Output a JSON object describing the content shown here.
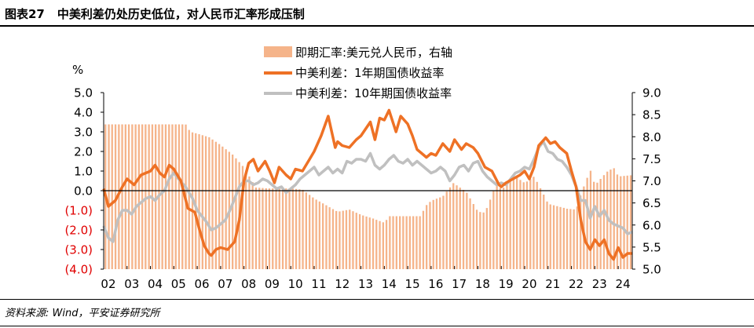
{
  "header": {
    "figure_number": "图表27",
    "title": "中美利差仍处历史低位，对人民币汇率形成压制"
  },
  "footer": {
    "source": "资料来源: Wind，平安证券研究所"
  },
  "colors": {
    "bar": "#f5b48a",
    "line1": "#ee7125",
    "line2": "#c0c0c0",
    "negative_tick": "#e00000",
    "text": "#000000"
  },
  "chart_data": {
    "type": "line",
    "left_unit": "%",
    "left_ylim": [
      -4.0,
      5.0
    ],
    "left_ticks": [
      "5.0",
      "4.0",
      "3.0",
      "2.0",
      "1.0",
      "0.0",
      "(1.0)",
      "(2.0)",
      "(3.0)",
      "(4.0)"
    ],
    "right_ylim": [
      5.0,
      9.0
    ],
    "right_ticks": [
      "9.0",
      "8.5",
      "8.0",
      "7.5",
      "7.0",
      "6.5",
      "6.0",
      "5.5",
      "5.0"
    ],
    "x_tick_labels": [
      "02",
      "03",
      "04",
      "05",
      "06",
      "07",
      "08",
      "09",
      "10",
      "11",
      "12",
      "13",
      "14",
      "15",
      "16",
      "17",
      "18",
      "19",
      "20",
      "21",
      "22",
      "23",
      "24"
    ],
    "x_range": [
      2002.0,
      2024.6
    ],
    "series": [
      {
        "name": "即期汇率:美元兑人民币，右轴",
        "type": "bar",
        "axis": "right",
        "points": [
          [
            2002.0,
            8.28
          ],
          [
            2003.0,
            8.28
          ],
          [
            2004.0,
            8.28
          ],
          [
            2005.0,
            8.28
          ],
          [
            2005.5,
            8.28
          ],
          [
            2005.7,
            8.11
          ],
          [
            2006.0,
            8.07
          ],
          [
            2006.5,
            7.99
          ],
          [
            2007.0,
            7.81
          ],
          [
            2007.5,
            7.6
          ],
          [
            2008.0,
            7.3
          ],
          [
            2008.5,
            6.85
          ],
          [
            2009.0,
            6.83
          ],
          [
            2010.0,
            6.83
          ],
          [
            2010.5,
            6.8
          ],
          [
            2011.0,
            6.6
          ],
          [
            2011.5,
            6.45
          ],
          [
            2012.0,
            6.3
          ],
          [
            2012.5,
            6.35
          ],
          [
            2013.0,
            6.23
          ],
          [
            2013.5,
            6.15
          ],
          [
            2014.0,
            6.05
          ],
          [
            2014.2,
            6.2
          ],
          [
            2015.0,
            6.2
          ],
          [
            2015.6,
            6.2
          ],
          [
            2015.7,
            6.4
          ],
          [
            2016.0,
            6.55
          ],
          [
            2016.5,
            6.65
          ],
          [
            2016.95,
            6.95
          ],
          [
            2017.5,
            6.75
          ],
          [
            2018.0,
            6.3
          ],
          [
            2018.3,
            6.28
          ],
          [
            2018.8,
            6.95
          ],
          [
            2019.0,
            6.8
          ],
          [
            2019.6,
            7.1
          ],
          [
            2020.0,
            6.95
          ],
          [
            2020.4,
            7.1
          ],
          [
            2020.8,
            6.7
          ],
          [
            2021.0,
            6.48
          ],
          [
            2021.8,
            6.37
          ],
          [
            2022.2,
            6.35
          ],
          [
            2022.4,
            6.7
          ],
          [
            2022.8,
            7.25
          ],
          [
            2023.0,
            6.9
          ],
          [
            2023.5,
            7.2
          ],
          [
            2023.8,
            7.3
          ],
          [
            2024.0,
            7.1
          ],
          [
            2024.6,
            7.13
          ]
        ]
      },
      {
        "name": "中美利差：1年期国债收益率",
        "type": "line",
        "axis": "left",
        "points": [
          [
            2002.0,
            0.1
          ],
          [
            2002.2,
            -0.8
          ],
          [
            2002.5,
            -0.5
          ],
          [
            2002.8,
            0.2
          ],
          [
            2003.0,
            0.6
          ],
          [
            2003.3,
            0.3
          ],
          [
            2003.6,
            0.8
          ],
          [
            2004.0,
            1.0
          ],
          [
            2004.2,
            1.3
          ],
          [
            2004.4,
            0.9
          ],
          [
            2004.6,
            0.7
          ],
          [
            2004.8,
            1.3
          ],
          [
            2005.0,
            1.1
          ],
          [
            2005.3,
            0.5
          ],
          [
            2005.6,
            -0.9
          ],
          [
            2005.9,
            -1.1
          ],
          [
            2006.1,
            -2.0
          ],
          [
            2006.3,
            -2.8
          ],
          [
            2006.5,
            -3.2
          ],
          [
            2006.6,
            -3.3
          ],
          [
            2006.8,
            -3.0
          ],
          [
            2007.0,
            -2.9
          ],
          [
            2007.3,
            -3.0
          ],
          [
            2007.6,
            -2.6
          ],
          [
            2007.8,
            -1.5
          ],
          [
            2008.0,
            0.5
          ],
          [
            2008.2,
            1.4
          ],
          [
            2008.4,
            1.6
          ],
          [
            2008.6,
            1.0
          ],
          [
            2008.9,
            1.5
          ],
          [
            2009.1,
            1.0
          ],
          [
            2009.3,
            0.4
          ],
          [
            2009.5,
            1.2
          ],
          [
            2009.8,
            0.8
          ],
          [
            2010.0,
            0.6
          ],
          [
            2010.2,
            1.1
          ],
          [
            2010.5,
            1.0
          ],
          [
            2010.8,
            1.6
          ],
          [
            2011.0,
            2.0
          ],
          [
            2011.3,
            2.8
          ],
          [
            2011.6,
            3.8
          ],
          [
            2011.9,
            2.2
          ],
          [
            2012.0,
            2.5
          ],
          [
            2012.2,
            2.3
          ],
          [
            2012.5,
            2.2
          ],
          [
            2012.8,
            2.6
          ],
          [
            2013.0,
            2.8
          ],
          [
            2013.4,
            3.5
          ],
          [
            2013.6,
            2.6
          ],
          [
            2013.8,
            3.7
          ],
          [
            2014.0,
            3.6
          ],
          [
            2014.2,
            4.1
          ],
          [
            2014.5,
            3.0
          ],
          [
            2014.7,
            3.8
          ],
          [
            2015.0,
            3.4
          ],
          [
            2015.2,
            2.8
          ],
          [
            2015.4,
            2.1
          ],
          [
            2015.6,
            1.9
          ],
          [
            2015.8,
            1.7
          ],
          [
            2016.0,
            1.9
          ],
          [
            2016.2,
            1.8
          ],
          [
            2016.5,
            2.4
          ],
          [
            2016.8,
            2.0
          ],
          [
            2017.0,
            2.6
          ],
          [
            2017.3,
            2.1
          ],
          [
            2017.5,
            2.4
          ],
          [
            2017.8,
            2.2
          ],
          [
            2018.0,
            1.9
          ],
          [
            2018.3,
            1.2
          ],
          [
            2018.6,
            1.0
          ],
          [
            2018.9,
            0.3
          ],
          [
            2019.0,
            0.2
          ],
          [
            2019.2,
            0.4
          ],
          [
            2019.5,
            0.6
          ],
          [
            2019.8,
            0.8
          ],
          [
            2020.0,
            1.0
          ],
          [
            2020.2,
            0.6
          ],
          [
            2020.4,
            1.2
          ],
          [
            2020.6,
            2.3
          ],
          [
            2020.9,
            2.7
          ],
          [
            2021.1,
            2.4
          ],
          [
            2021.3,
            2.5
          ],
          [
            2021.5,
            2.2
          ],
          [
            2021.8,
            1.9
          ],
          [
            2022.0,
            1.0
          ],
          [
            2022.2,
            0.2
          ],
          [
            2022.4,
            -1.5
          ],
          [
            2022.6,
            -2.6
          ],
          [
            2022.8,
            -3.0
          ],
          [
            2023.0,
            -2.5
          ],
          [
            2023.2,
            -2.8
          ],
          [
            2023.4,
            -2.5
          ],
          [
            2023.6,
            -3.2
          ],
          [
            2023.8,
            -3.5
          ],
          [
            2024.0,
            -2.9
          ],
          [
            2024.2,
            -3.4
          ],
          [
            2024.4,
            -3.2
          ],
          [
            2024.6,
            -3.2
          ]
        ]
      },
      {
        "name": "中美利差：10年期国债收益率",
        "type": "line",
        "axis": "left",
        "points": [
          [
            2002.0,
            -1.8
          ],
          [
            2002.2,
            -2.4
          ],
          [
            2002.4,
            -2.6
          ],
          [
            2002.6,
            -1.5
          ],
          [
            2002.8,
            -1.0
          ],
          [
            2003.0,
            -1.0
          ],
          [
            2003.2,
            -1.2
          ],
          [
            2003.4,
            -0.8
          ],
          [
            2003.6,
            -0.6
          ],
          [
            2003.8,
            -0.4
          ],
          [
            2004.0,
            -0.3
          ],
          [
            2004.2,
            -0.5
          ],
          [
            2004.4,
            -0.2
          ],
          [
            2004.6,
            0.0
          ],
          [
            2004.8,
            0.6
          ],
          [
            2005.0,
            0.9
          ],
          [
            2005.2,
            0.6
          ],
          [
            2005.5,
            0.2
          ],
          [
            2005.8,
            -0.4
          ],
          [
            2006.0,
            -1.0
          ],
          [
            2006.2,
            -1.3
          ],
          [
            2006.4,
            -1.6
          ],
          [
            2006.6,
            -2.0
          ],
          [
            2006.8,
            -1.9
          ],
          [
            2007.0,
            -1.7
          ],
          [
            2007.2,
            -1.5
          ],
          [
            2007.4,
            -1.0
          ],
          [
            2007.6,
            -0.4
          ],
          [
            2007.8,
            0.2
          ],
          [
            2008.0,
            0.5
          ],
          [
            2008.2,
            0.5
          ],
          [
            2008.4,
            0.3
          ],
          [
            2008.6,
            0.4
          ],
          [
            2008.8,
            0.6
          ],
          [
            2009.0,
            0.5
          ],
          [
            2009.2,
            0.3
          ],
          [
            2009.4,
            0.1
          ],
          [
            2009.6,
            0.2
          ],
          [
            2009.8,
            -0.1
          ],
          [
            2010.0,
            0.1
          ],
          [
            2010.2,
            0.3
          ],
          [
            2010.4,
            0.6
          ],
          [
            2010.6,
            0.8
          ],
          [
            2010.8,
            1.0
          ],
          [
            2011.0,
            1.2
          ],
          [
            2011.2,
            0.8
          ],
          [
            2011.4,
            1.0
          ],
          [
            2011.6,
            1.2
          ],
          [
            2011.8,
            0.9
          ],
          [
            2012.0,
            1.1
          ],
          [
            2012.2,
            0.9
          ],
          [
            2012.4,
            1.5
          ],
          [
            2012.6,
            1.4
          ],
          [
            2012.8,
            1.6
          ],
          [
            2013.0,
            1.6
          ],
          [
            2013.2,
            1.5
          ],
          [
            2013.4,
            1.9
          ],
          [
            2013.6,
            1.3
          ],
          [
            2013.8,
            1.1
          ],
          [
            2014.0,
            1.3
          ],
          [
            2014.2,
            1.6
          ],
          [
            2014.4,
            1.8
          ],
          [
            2014.6,
            1.5
          ],
          [
            2014.8,
            1.4
          ],
          [
            2015.0,
            1.6
          ],
          [
            2015.2,
            1.3
          ],
          [
            2015.4,
            1.5
          ],
          [
            2015.6,
            1.3
          ],
          [
            2015.8,
            1.1
          ],
          [
            2016.0,
            0.9
          ],
          [
            2016.2,
            1.0
          ],
          [
            2016.4,
            1.2
          ],
          [
            2016.6,
            1.0
          ],
          [
            2016.8,
            0.5
          ],
          [
            2017.0,
            0.8
          ],
          [
            2017.2,
            1.2
          ],
          [
            2017.4,
            1.3
          ],
          [
            2017.6,
            1.0
          ],
          [
            2017.8,
            1.4
          ],
          [
            2018.0,
            1.5
          ],
          [
            2018.2,
            1.0
          ],
          [
            2018.4,
            0.7
          ],
          [
            2018.6,
            0.5
          ],
          [
            2018.8,
            0.3
          ],
          [
            2019.0,
            0.4
          ],
          [
            2019.2,
            0.3
          ],
          [
            2019.4,
            0.6
          ],
          [
            2019.6,
            0.9
          ],
          [
            2019.8,
            1.0
          ],
          [
            2020.0,
            1.2
          ],
          [
            2020.2,
            1.1
          ],
          [
            2020.4,
            1.6
          ],
          [
            2020.6,
            2.2
          ],
          [
            2020.8,
            2.5
          ],
          [
            2021.0,
            2.0
          ],
          [
            2021.2,
            1.9
          ],
          [
            2021.4,
            1.6
          ],
          [
            2021.6,
            1.5
          ],
          [
            2021.8,
            1.2
          ],
          [
            2022.0,
            0.8
          ],
          [
            2022.2,
            0.2
          ],
          [
            2022.4,
            -0.5
          ],
          [
            2022.6,
            -0.5
          ],
          [
            2022.8,
            -1.4
          ],
          [
            2023.0,
            -0.8
          ],
          [
            2023.2,
            -1.3
          ],
          [
            2023.4,
            -1.0
          ],
          [
            2023.6,
            -1.5
          ],
          [
            2023.8,
            -1.7
          ],
          [
            2024.0,
            -1.8
          ],
          [
            2024.2,
            -1.9
          ],
          [
            2024.4,
            -2.2
          ],
          [
            2024.6,
            -2.1
          ]
        ]
      }
    ]
  }
}
